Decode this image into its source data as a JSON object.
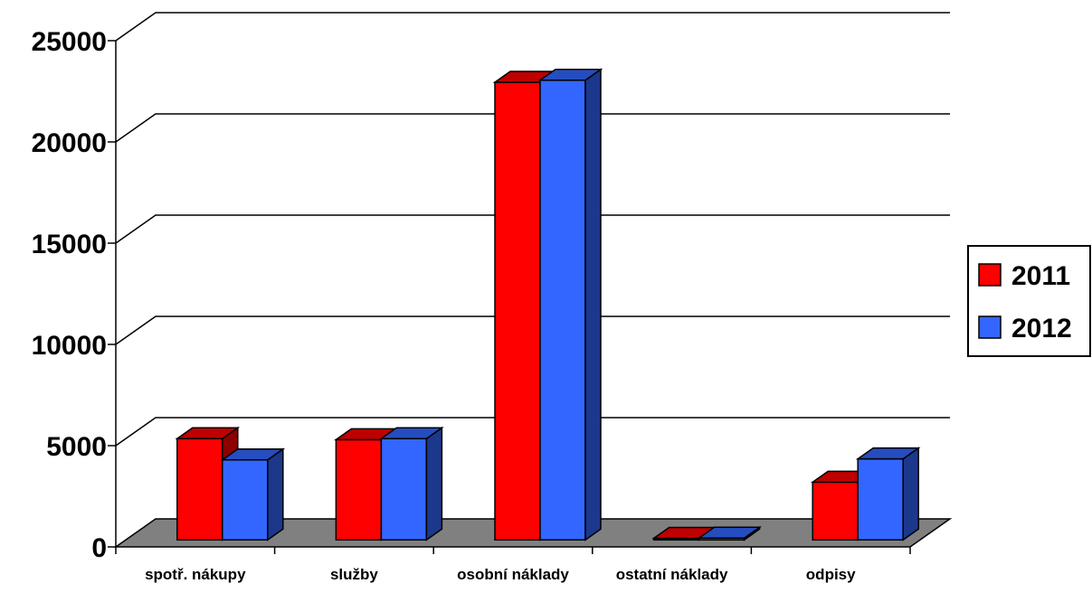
{
  "chart_data": {
    "type": "bar",
    "style": "3d-clustered-column",
    "categories": [
      "spotř. nákupy",
      "služby",
      "osobní náklady",
      "ostatní náklady",
      "odpisy"
    ],
    "series": [
      {
        "name": "2011",
        "color": "#ff0000",
        "values": [
          5000,
          4950,
          22600,
          80,
          2850
        ]
      },
      {
        "name": "2012",
        "color": "#3366ff",
        "values": [
          3950,
          5000,
          22700,
          90,
          4000
        ]
      }
    ],
    "ylim": [
      0,
      25000
    ],
    "yticks": [
      "0",
      "5000",
      "10000",
      "15000",
      "20000",
      "25000"
    ],
    "grid": true,
    "legend": "right",
    "floor_color": "#808080"
  }
}
